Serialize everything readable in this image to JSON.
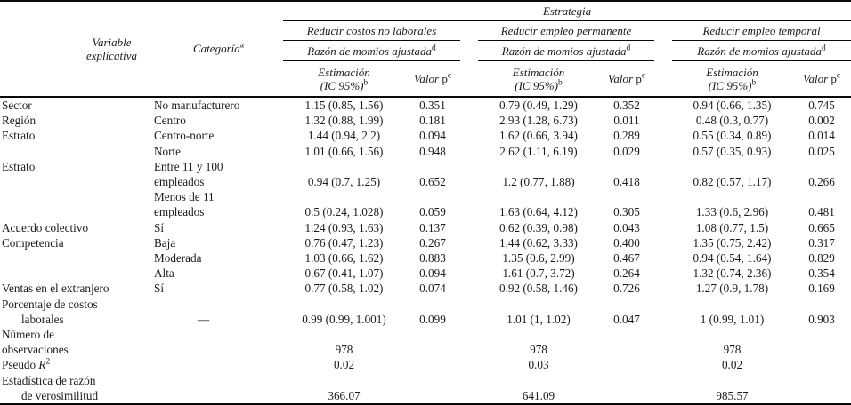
{
  "header": {
    "estrategia": "Estrategia",
    "variable_line1": "Variable",
    "variable_line2": "explicativa",
    "categoria": "Categoría",
    "categoria_sup": "a",
    "groups": [
      "Reducir costos no laborales",
      "Reducir empleo permanente",
      "Reducir empleo temporal"
    ],
    "razon": "Razón de momios ajustada",
    "razon_sup": "d",
    "estimacion_line1": "Estimación",
    "estimacion_line2": "(IC 95%)",
    "estimacion_sup": "b",
    "valor": "Valor",
    "valor_p": "p",
    "valor_p_sup": "c"
  },
  "rows": [
    {
      "variable": "Sector",
      "categoria": "No manufacturero",
      "values": [
        "1.15 (0.85, 1.56)",
        "0.351",
        "0.79 (0.49, 1.29)",
        "0.352",
        "0.94 (0.66, 1.35)",
        "0.745"
      ]
    },
    {
      "variable": "Región",
      "categoria": "Centro",
      "values": [
        "1.32 (0.88, 1.99)",
        "0.181",
        "2.93 (1.28, 6.73)",
        "0.011",
        "0.48 (0.3, 0.77)",
        "0.002"
      ]
    },
    {
      "variable": "Estrato",
      "categoria": "Centro-norte",
      "values": [
        "1.44 (0.94, 2.2)",
        "0.094",
        "1.62 (0.66, 3.94)",
        "0.289",
        "0.55 (0.34, 0.89)",
        "0.014"
      ]
    },
    {
      "variable": "",
      "categoria": "Norte",
      "values": [
        "1.01 (0.66, 1.56)",
        "0.948",
        "2.62 (1.11, 6.19)",
        "0.029",
        "0.57 (0.35, 0.93)",
        "0.025"
      ]
    },
    {
      "variable": "Estrato",
      "categoria": "Entre 11 y 100",
      "values": [
        "",
        "",
        "",
        "",
        "",
        ""
      ]
    },
    {
      "variable": "",
      "categoria": "empleados",
      "values": [
        "0.94 (0.7, 1.25)",
        "0.652",
        "1.2 (0.77, 1.88)",
        "0.418",
        "0.82 (0.57, 1.17)",
        "0.266"
      ]
    },
    {
      "variable": "",
      "categoria": "Menos de 11",
      "values": [
        "",
        "",
        "",
        "",
        "",
        ""
      ]
    },
    {
      "variable": "",
      "categoria": "empleados",
      "values": [
        "0.5 (0.24, 1.028)",
        "0.059",
        "1.63 (0.64, 4.12)",
        "0.305",
        "1.33 (0.6, 2.96)",
        "0.481"
      ]
    },
    {
      "variable": "Acuerdo colectivo",
      "categoria": "Sí",
      "values": [
        "1.24 (0.93, 1.63)",
        "0.137",
        "0.62 (0.39, 0.98)",
        "0.043",
        "1.08 (0.77, 1.5)",
        "0.665"
      ]
    },
    {
      "variable": "Competencia",
      "categoria": "Baja",
      "values": [
        "0.76 (0.47, 1.23)",
        "0.267",
        "1.44 (0.62, 3.33)",
        "0.400",
        "1.35 (0.75, 2.42)",
        "0.317"
      ]
    },
    {
      "variable": "",
      "categoria": "Moderada",
      "values": [
        "1.03 (0.66, 1.62)",
        "0.883",
        "1.35 (0.6, 2.99)",
        "0.467",
        "0.94 (0.54, 1.64)",
        "0.829"
      ]
    },
    {
      "variable": "",
      "categoria": "Alta",
      "values": [
        "0.67 (0.41, 1.07)",
        "0.094",
        "1.61 (0.7, 3.72)",
        "0.264",
        "1.32 (0.74, 2.36)",
        "0.354"
      ]
    },
    {
      "variable": "Ventas en el extranjero",
      "categoria": "Sí",
      "values": [
        "0.77 (0.58, 1.02)",
        "0.074",
        "0.92 (0.58, 1.46)",
        "0.726",
        "1.27 (0.9, 1.78)",
        "0.169"
      ]
    },
    {
      "variable": "Porcentaje de costos",
      "categoria": "",
      "values": [
        "",
        "",
        "",
        "",
        "",
        ""
      ]
    },
    {
      "variable": "laborales",
      "indent": true,
      "categoria": "—",
      "cat_pad": true,
      "values": [
        "0.99 (0.99, 1.001)",
        "0.099",
        "1.01 (1, 1.02)",
        "0.047",
        "1 (0.99, 1.01)",
        "0.903"
      ]
    },
    {
      "variable": "Número de",
      "categoria": "",
      "values": [
        "",
        "",
        "",
        "",
        "",
        ""
      ]
    },
    {
      "variable": "observaciones",
      "categoria": "",
      "values": [
        "978",
        "",
        "978",
        "",
        "978",
        ""
      ]
    },
    {
      "variable_parts": {
        "prefix": "Pseudo ",
        "symbol": "R",
        "sup": "2"
      },
      "categoria": "",
      "values": [
        "0.02",
        "",
        "0.03",
        "",
        "0.02",
        ""
      ]
    },
    {
      "variable": "Estadística de razón",
      "categoria": "",
      "values": [
        "",
        "",
        "",
        "",
        "",
        ""
      ]
    },
    {
      "variable": "de verosimilitud",
      "indent": true,
      "categoria": "",
      "values": [
        "366.07",
        "",
        "641.09",
        "",
        "985.57",
        ""
      ]
    }
  ]
}
